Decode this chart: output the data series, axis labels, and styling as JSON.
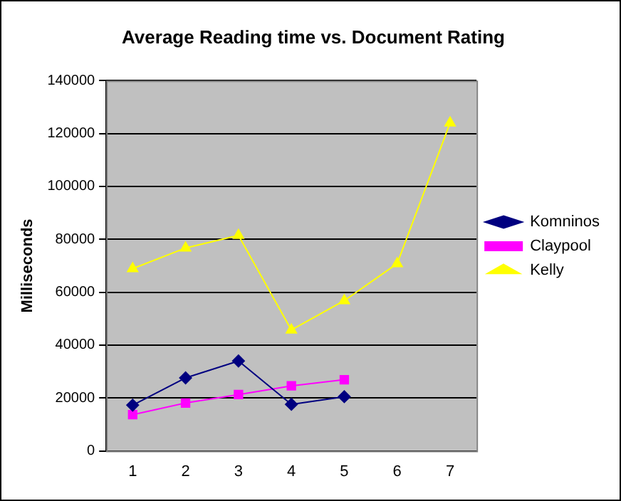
{
  "chart_data": {
    "type": "line",
    "title": "Average Reading time vs. Document Rating",
    "ylabel": "Milliseconds",
    "categories": [
      "1",
      "2",
      "3",
      "4",
      "5",
      "6",
      "7"
    ],
    "series": [
      {
        "name": "Komninos",
        "color": "#000080",
        "marker": "diamond",
        "values": [
          17300,
          27600,
          34000,
          17600,
          20500,
          null,
          null
        ]
      },
      {
        "name": "Claypool",
        "color": "#ff00ff",
        "marker": "square",
        "values": [
          13700,
          18100,
          21300,
          24600,
          26900,
          null,
          null
        ]
      },
      {
        "name": "Kelly",
        "color": "#ffff00",
        "marker": "triangle",
        "values": [
          68900,
          76700,
          81500,
          45700,
          56800,
          70800,
          124000
        ]
      }
    ],
    "ylim": [
      0,
      140000
    ],
    "yticks": [
      0,
      20000,
      40000,
      60000,
      80000,
      100000,
      120000,
      140000
    ],
    "grid": "y",
    "legend": "right"
  }
}
